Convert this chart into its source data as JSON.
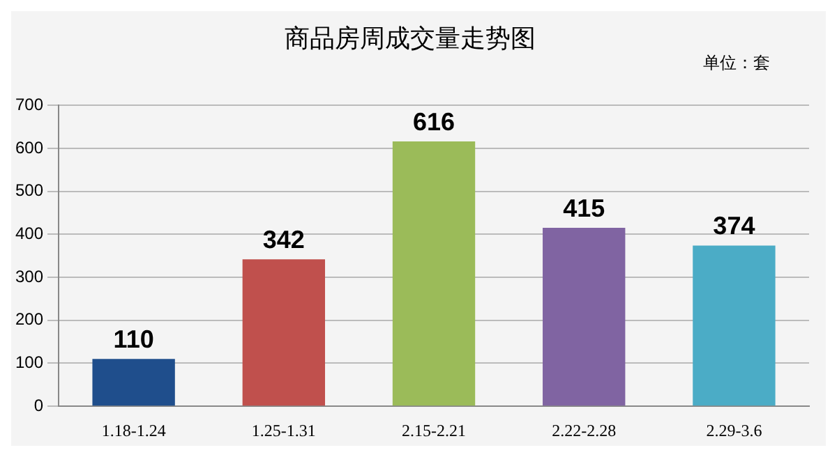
{
  "chart_data": {
    "type": "bar",
    "title": "商品房周成交量走势图",
    "annotations": [
      "单位：套"
    ],
    "categories": [
      "1.18-1.24",
      "1.25-1.31",
      "2.15-2.21",
      "2.22-2.28",
      "2.29-3.6"
    ],
    "values": [
      110,
      342,
      616,
      415,
      374
    ],
    "colors": [
      "#1f4e8c",
      "#c0504d",
      "#9bbb59",
      "#8064a2",
      "#4bacc6"
    ],
    "ylim": [
      0,
      700
    ],
    "yticks": [
      0,
      100,
      200,
      300,
      400,
      500,
      600,
      700
    ],
    "grid": "y",
    "data_labels": true,
    "legend": false
  }
}
